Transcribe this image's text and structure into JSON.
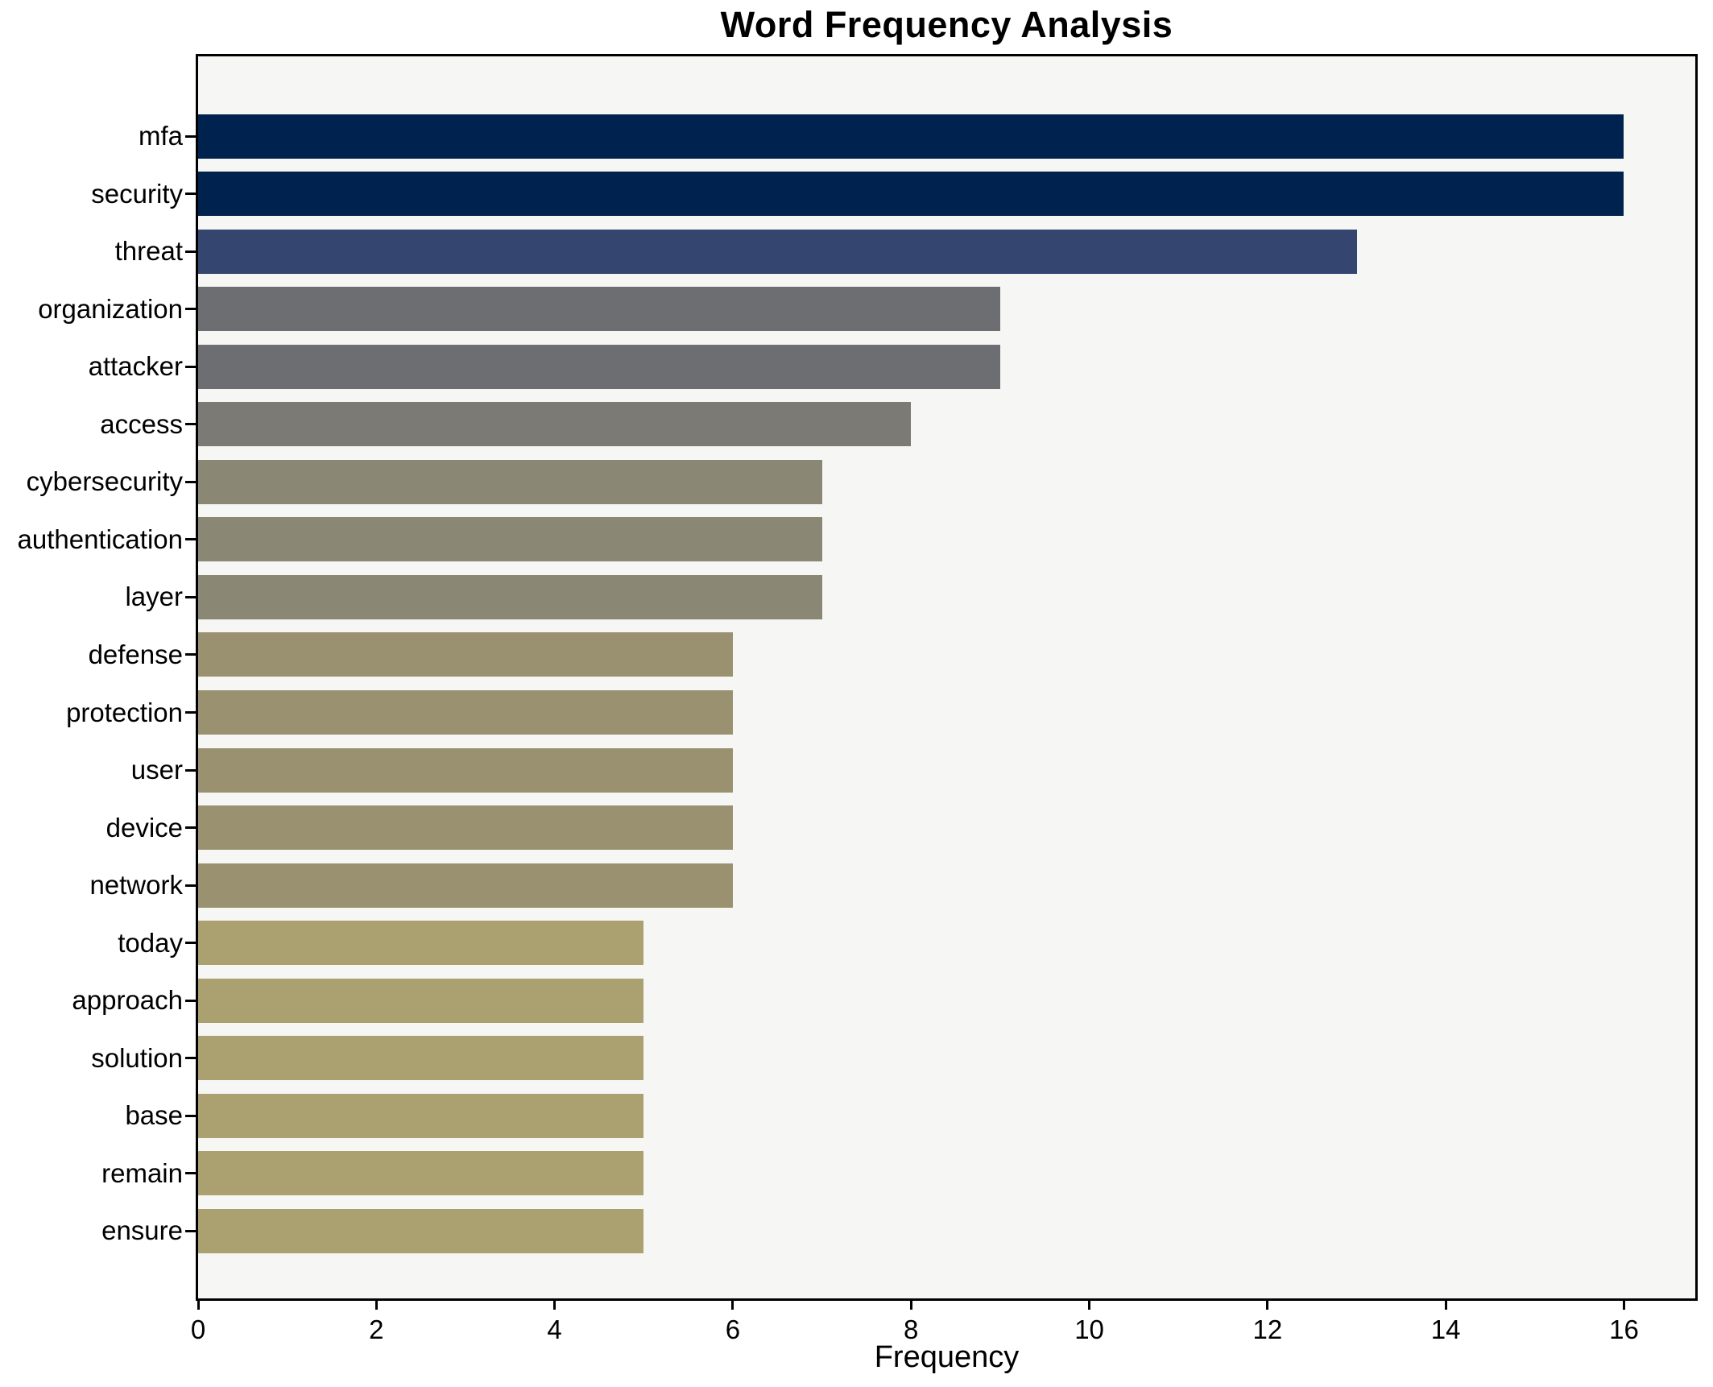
{
  "chart_data": {
    "type": "bar",
    "orientation": "horizontal",
    "title": "Word Frequency Analysis",
    "xlabel": "Frequency",
    "ylabel": "",
    "categories": [
      "mfa",
      "security",
      "threat",
      "organization",
      "attacker",
      "access",
      "cybersecurity",
      "authentication",
      "layer",
      "defense",
      "protection",
      "user",
      "device",
      "network",
      "today",
      "approach",
      "solution",
      "base",
      "remain",
      "ensure"
    ],
    "values": [
      16,
      16,
      13,
      9,
      9,
      8,
      7,
      7,
      7,
      6,
      6,
      6,
      6,
      6,
      5,
      5,
      5,
      5,
      5,
      5
    ],
    "bar_colors": [
      "#00224e",
      "#00224e",
      "#34456f",
      "#6d6e71",
      "#6d6e71",
      "#7b7a74",
      "#8a8775",
      "#8a8775",
      "#8a8775",
      "#999170",
      "#999170",
      "#999170",
      "#999170",
      "#999170",
      "#aba06f",
      "#aba06f",
      "#aba06f",
      "#aba06f",
      "#aba06f",
      "#aba06f"
    ],
    "xlim": [
      0,
      16.8
    ],
    "x_ticks": [
      0,
      2,
      4,
      6,
      8,
      10,
      12,
      14,
      16
    ],
    "grid": false,
    "legend": null,
    "plot_background": "#f6f6f5",
    "figure_background": "#ffffff",
    "spine_color": "#000000",
    "text_color": "#000000"
  }
}
